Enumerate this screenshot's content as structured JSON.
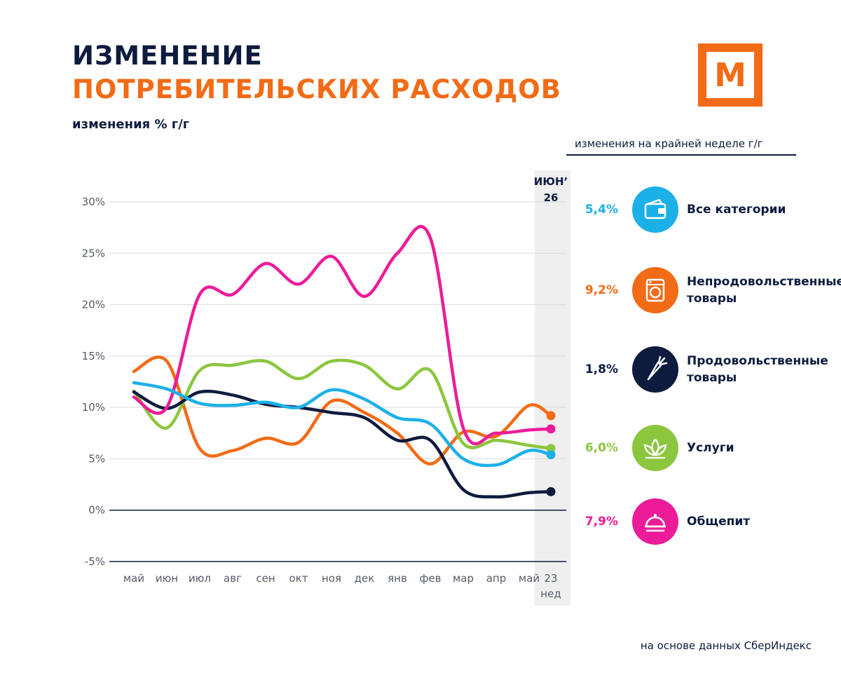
{
  "title_line1": "ИЗМЕНЕНИЕ",
  "title_line2": "ПОТРЕБИТЕЛЬСКИХ РАСХОДОВ",
  "subtitle": "изменения % г/г",
  "logo_letter": "М",
  "legend_title": "изменения на крайней неделе г/г",
  "source": "на основе данных СберИндекс",
  "highlight": {
    "top_line1": "ИЮН’",
    "top_line2": "26",
    "bottom_line1": "23",
    "bottom_line2": "нед"
  },
  "legend": [
    {
      "value": "5,4%",
      "label_lines": [
        "Все категории"
      ],
      "color": "#1cb0e8",
      "icon": "wallet-icon"
    },
    {
      "value": "9,2%",
      "label_lines": [
        "Непродовольственные",
        "товары"
      ],
      "color": "#f26b16",
      "icon": "washing-machine-icon"
    },
    {
      "value": "1,8%",
      "label_lines": [
        "Продовольственные",
        "товары"
      ],
      "color": "#0d1b3e",
      "icon": "carrot-icon"
    },
    {
      "value": "6,0%",
      "label_lines": [
        "Услуги"
      ],
      "color": "#8cc63f",
      "icon": "lotus-icon"
    },
    {
      "value": "7,9%",
      "label_lines": [
        "Общепит"
      ],
      "color": "#ec1c99",
      "icon": "cloche-icon"
    }
  ],
  "chart_data": {
    "type": "line",
    "categories": [
      "май",
      "июн",
      "июл",
      "авг",
      "сен",
      "окт",
      "ноя",
      "дек",
      "янв",
      "фев",
      "мар",
      "апр",
      "май"
    ],
    "y_tick_labels": [
      "30%",
      "25%",
      "20%",
      "15%",
      "10%",
      "5%",
      "0%",
      "-5%"
    ],
    "ylim": [
      -5,
      30
    ],
    "y_ticks": [
      30,
      25,
      20,
      15,
      10,
      5,
      0,
      -5
    ],
    "grid": true,
    "series": [
      {
        "name": "Непродовольственные товары",
        "color": "#f26b16",
        "values": [
          13.5,
          14.5,
          6.0,
          5.8,
          7.0,
          6.6,
          10.6,
          9.5,
          7.5,
          4.5,
          7.6,
          7.2,
          10.2
        ],
        "last_week": 9.2
      },
      {
        "name": "Услуги",
        "color": "#8cc63f",
        "values": [
          11.6,
          8.0,
          13.6,
          14.1,
          14.5,
          12.8,
          14.5,
          14.1,
          11.8,
          13.6,
          6.5,
          6.8,
          6.3
        ],
        "last_week": 6.0
      },
      {
        "name": "Продовольственные товары",
        "color": "#0d1b3e",
        "values": [
          11.5,
          9.9,
          11.5,
          11.2,
          10.3,
          10.0,
          9.5,
          9.0,
          6.8,
          6.8,
          2.0,
          1.3,
          1.7
        ],
        "last_week": 1.8
      },
      {
        "name": "Общепит",
        "color": "#ec1c99",
        "values": [
          11.0,
          10.0,
          21.0,
          21.0,
          24.0,
          22.0,
          24.7,
          20.8,
          25.0,
          26.5,
          8.0,
          7.5,
          7.8
        ],
        "last_week": 7.9
      },
      {
        "name": "Все категории",
        "color": "#1cb0e8",
        "values": [
          12.4,
          11.8,
          10.4,
          10.2,
          10.5,
          10.0,
          11.7,
          10.8,
          9.0,
          8.4,
          5.0,
          4.4,
          5.8
        ],
        "last_week": 5.4
      }
    ]
  }
}
